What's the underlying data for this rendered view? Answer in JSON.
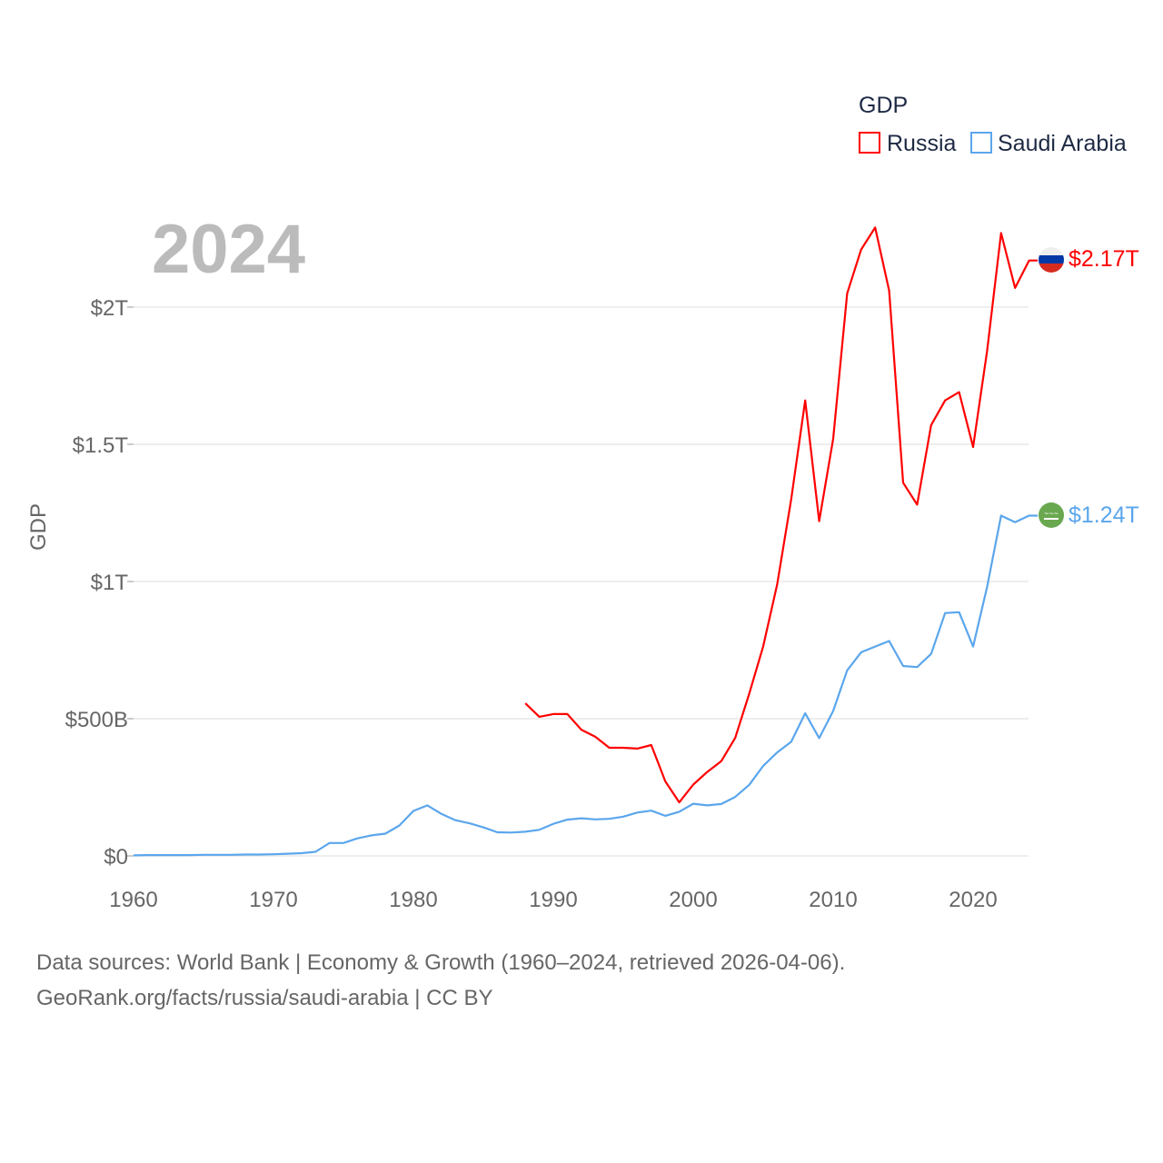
{
  "chart_data": {
    "type": "line",
    "year_label": "2024",
    "ylabel": "GDP",
    "xlabel": "",
    "legend": {
      "title": "GDP",
      "position": "top-right"
    },
    "xlim": [
      1960,
      2024
    ],
    "ylim": [
      0,
      2.35
    ],
    "x_ticks": [
      1960,
      1970,
      1980,
      1990,
      2000,
      2010,
      2020
    ],
    "y_ticks": [
      {
        "value": 0,
        "label": "$0"
      },
      {
        "value": 0.5,
        "label": "$500B"
      },
      {
        "value": 1,
        "label": "$1T"
      },
      {
        "value": 1.5,
        "label": "$1.5T"
      },
      {
        "value": 2,
        "label": "$2T"
      }
    ],
    "units": "trillions USD",
    "grid": true,
    "series": [
      {
        "name": "Russia",
        "color": "#ff0000",
        "end_label": "$2.17T",
        "start_year": 1988,
        "values": [
          0.556,
          0.507,
          0.517,
          0.517,
          0.46,
          0.434,
          0.394,
          0.394,
          0.391,
          0.404,
          0.272,
          0.195,
          0.26,
          0.306,
          0.345,
          0.43,
          0.591,
          0.764,
          0.99,
          1.3,
          1.66,
          1.22,
          1.52,
          2.05,
          2.21,
          2.29,
          2.06,
          1.36,
          1.28,
          1.57,
          1.66,
          1.69,
          1.49,
          1.84,
          2.27,
          2.07,
          2.17
        ]
      },
      {
        "name": "Saudi Arabia",
        "color": "#5ba6ec",
        "end_label": "$1.24T",
        "start_year": 1960,
        "values": [
          0.002,
          0.003,
          0.003,
          0.003,
          0.003,
          0.004,
          0.004,
          0.004,
          0.005,
          0.005,
          0.006,
          0.008,
          0.01,
          0.015,
          0.047,
          0.047,
          0.064,
          0.075,
          0.081,
          0.111,
          0.164,
          0.184,
          0.153,
          0.13,
          0.119,
          0.104,
          0.086,
          0.085,
          0.088,
          0.095,
          0.117,
          0.132,
          0.137,
          0.133,
          0.135,
          0.143,
          0.158,
          0.165,
          0.146,
          0.161,
          0.19,
          0.184,
          0.189,
          0.215,
          0.259,
          0.328,
          0.377,
          0.416,
          0.52,
          0.429,
          0.528,
          0.676,
          0.742,
          0.763,
          0.783,
          0.692,
          0.688,
          0.736,
          0.885,
          0.888,
          0.763,
          0.98,
          1.24,
          1.216,
          1.24
        ]
      }
    ]
  },
  "footer": {
    "line1": "Data sources: World Bank | Economy & Growth (1960–2024, retrieved 2026-04-06).",
    "line2": "GeoRank.org/facts/russia/saudi-arabia | CC BY"
  }
}
